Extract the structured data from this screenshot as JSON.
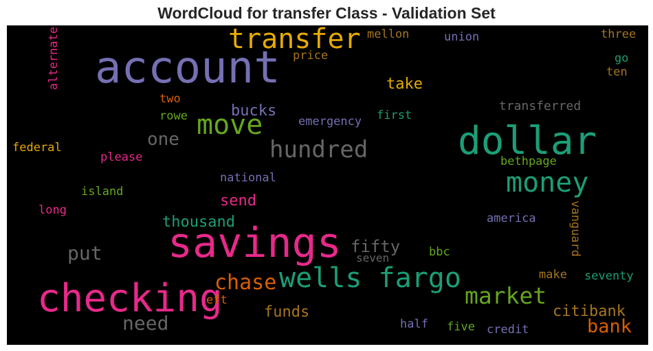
{
  "title": "WordCloud for transfer Class - Validation Set",
  "words": {
    "savings": {
      "text": "savings",
      "color": "#e7298a"
    },
    "account": {
      "text": "account",
      "color": "#7570b3"
    },
    "checking": {
      "text": "checking",
      "color": "#e7298a"
    },
    "dollar": {
      "text": "dollar",
      "color": "#1b9e77"
    },
    "transfer": {
      "text": "transfer",
      "color": "#e6ab02"
    },
    "wells_fargo": {
      "text": "wells fargo",
      "color": "#1b9e77"
    },
    "move": {
      "text": "move",
      "color": "#66a61e"
    },
    "money": {
      "text": "money",
      "color": "#1b9e77"
    },
    "hundred": {
      "text": "hundred",
      "color": "#666666"
    },
    "market": {
      "text": "market",
      "color": "#66a61e"
    },
    "chase": {
      "text": "chase",
      "color": "#d95f02"
    },
    "need": {
      "text": "need",
      "color": "#666666"
    },
    "put": {
      "text": "put",
      "color": "#666666"
    },
    "bank": {
      "text": "bank",
      "color": "#d95f02"
    },
    "citibank": {
      "text": "citibank",
      "color": "#a6761d"
    },
    "fifty": {
      "text": "fifty",
      "color": "#666666"
    },
    "thousand": {
      "text": "thousand",
      "color": "#1b9e77"
    },
    "one": {
      "text": "one",
      "color": "#666666"
    },
    "funds": {
      "text": "funds",
      "color": "#a6761d"
    },
    "send": {
      "text": "send",
      "color": "#e7298a"
    },
    "bucks": {
      "text": "bucks",
      "color": "#7570b3"
    },
    "take": {
      "text": "take",
      "color": "#e6ab02"
    },
    "transferred": {
      "text": "transferred",
      "color": "#666666"
    },
    "mellon": {
      "text": "mellon",
      "color": "#a6761d"
    },
    "union": {
      "text": "union",
      "color": "#7570b3"
    },
    "three": {
      "text": "three",
      "color": "#a6761d"
    },
    "go": {
      "text": "go",
      "color": "#1b9e77"
    },
    "ten": {
      "text": "ten",
      "color": "#a6761d"
    },
    "price": {
      "text": "price",
      "color": "#a6761d"
    },
    "two": {
      "text": "two",
      "color": "#d95f02"
    },
    "rowe": {
      "text": "rowe",
      "color": "#66a61e"
    },
    "emergency": {
      "text": "emergency",
      "color": "#7570b3"
    },
    "first": {
      "text": "first",
      "color": "#1b9e77"
    },
    "federal": {
      "text": "federal",
      "color": "#e6ab02"
    },
    "please": {
      "text": "please",
      "color": "#e7298a"
    },
    "bethpage": {
      "text": "bethpage",
      "color": "#66a61e"
    },
    "national": {
      "text": "national",
      "color": "#7570b3"
    },
    "island": {
      "text": "island",
      "color": "#66a61e"
    },
    "long": {
      "text": "long",
      "color": "#e7298a"
    },
    "america": {
      "text": "america",
      "color": "#7570b3"
    },
    "vanguard": {
      "text": "vanguard",
      "color": "#a6761d"
    },
    "alternate": {
      "text": "alternate",
      "color": "#e7298a"
    },
    "seven": {
      "text": "seven",
      "color": "#666666"
    },
    "bbc": {
      "text": "bbc",
      "color": "#66a61e"
    },
    "make": {
      "text": "make",
      "color": "#a6761d"
    },
    "seventy": {
      "text": "seventy",
      "color": "#1b9e77"
    },
    "eft": {
      "text": "eft",
      "color": "#d95f02"
    },
    "half": {
      "text": "half",
      "color": "#7570b3"
    },
    "five": {
      "text": "five",
      "color": "#66a61e"
    },
    "credit": {
      "text": "credit",
      "color": "#7570b3"
    }
  }
}
